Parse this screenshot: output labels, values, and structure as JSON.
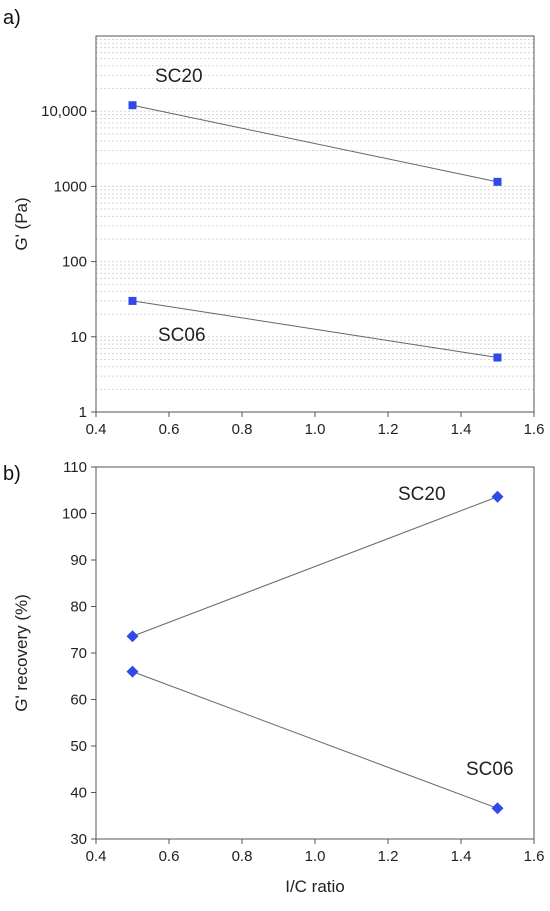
{
  "chart_data": [
    {
      "panel_label": "a)",
      "type": "line",
      "x": [
        0.5,
        1.5
      ],
      "series": [
        {
          "name": "SC20",
          "values": [
            12000,
            1150
          ]
        },
        {
          "name": "SC06",
          "values": [
            30,
            5.3
          ]
        }
      ],
      "xlabel": "",
      "ylabel": "G' (Pa)",
      "yscale": "log",
      "xlim": [
        0.4,
        1.6
      ],
      "ylim": [
        1,
        100000
      ],
      "xticks": [
        "0.4",
        "0.6",
        "0.8",
        "1.0",
        "1.2",
        "1.4",
        "1.6"
      ],
      "yticks": [
        "1",
        "10",
        "100",
        "1000",
        "10,000"
      ],
      "grid": true,
      "marker": "square",
      "marker_color": "#2f4ae8"
    },
    {
      "panel_label": "b)",
      "type": "line",
      "x": [
        0.5,
        1.5
      ],
      "series": [
        {
          "name": "SC20",
          "values": [
            73.6,
            103.6
          ]
        },
        {
          "name": "SC06",
          "values": [
            66,
            36.6
          ]
        }
      ],
      "xlabel": "I/C ratio",
      "ylabel": "G' recovery (%)",
      "xlim": [
        0.4,
        1.6
      ],
      "ylim": [
        30,
        110
      ],
      "xticks": [
        "0.4",
        "0.6",
        "0.8",
        "1.0",
        "1.2",
        "1.4",
        "1.6"
      ],
      "yticks": [
        "30",
        "40",
        "50",
        "60",
        "70",
        "80",
        "90",
        "100",
        "110"
      ],
      "grid": false,
      "marker": "diamond",
      "marker_color": "#2f4ae8"
    }
  ]
}
